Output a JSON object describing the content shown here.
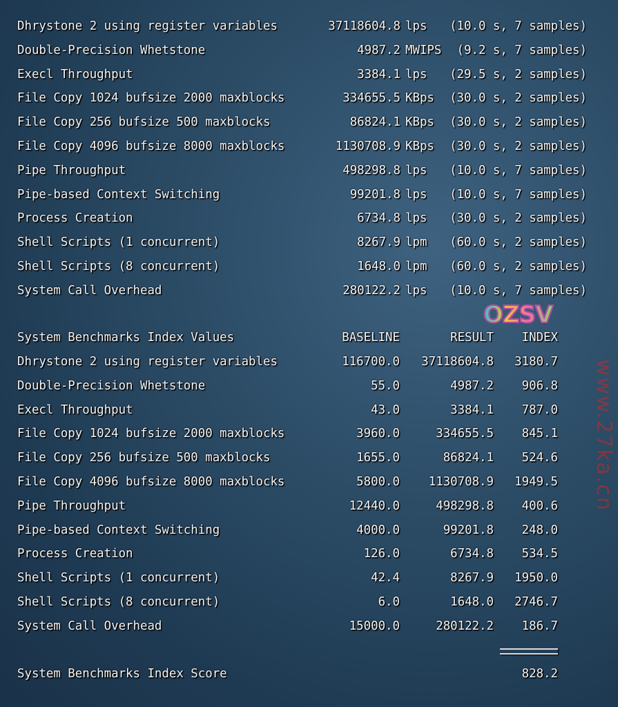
{
  "runs": [
    {
      "name": "Dhrystone 2 using register variables",
      "value": "37118604.8",
      "unit": "lps",
      "detail": "(10.0 s, 7 samples)"
    },
    {
      "name": "Double-Precision Whetstone",
      "value": "4987.2",
      "unit": "MWIPS",
      "detail": "(9.2 s, 7 samples)"
    },
    {
      "name": "Execl Throughput",
      "value": "3384.1",
      "unit": "lps",
      "detail": "(29.5 s, 2 samples)"
    },
    {
      "name": "File Copy 1024 bufsize 2000 maxblocks",
      "value": "334655.5",
      "unit": "KBps",
      "detail": "(30.0 s, 2 samples)"
    },
    {
      "name": "File Copy 256 bufsize 500 maxblocks",
      "value": "86824.1",
      "unit": "KBps",
      "detail": "(30.0 s, 2 samples)"
    },
    {
      "name": "File Copy 4096 bufsize 8000 maxblocks",
      "value": "1130708.9",
      "unit": "KBps",
      "detail": "(30.0 s, 2 samples)"
    },
    {
      "name": "Pipe Throughput",
      "value": "498298.8",
      "unit": "lps",
      "detail": "(10.0 s, 7 samples)"
    },
    {
      "name": "Pipe-based Context Switching",
      "value": "99201.8",
      "unit": "lps",
      "detail": "(10.0 s, 7 samples)"
    },
    {
      "name": "Process Creation",
      "value": "6734.8",
      "unit": "lps",
      "detail": "(30.0 s, 2 samples)"
    },
    {
      "name": "Shell Scripts (1 concurrent)",
      "value": "8267.9",
      "unit": "lpm",
      "detail": "(60.0 s, 2 samples)"
    },
    {
      "name": "Shell Scripts (8 concurrent)",
      "value": "1648.0",
      "unit": "lpm",
      "detail": "(60.0 s, 2 samples)"
    },
    {
      "name": "System Call Overhead",
      "value": "280122.2",
      "unit": "lps",
      "detail": "(10.0 s, 7 samples)"
    }
  ],
  "index": {
    "header": {
      "title": "System Benchmarks Index Values",
      "baseline": "BASELINE",
      "result": "RESULT",
      "index": "INDEX"
    },
    "rows": [
      {
        "name": "Dhrystone 2 using register variables",
        "baseline": "116700.0",
        "result": "37118604.8",
        "index": "3180.7"
      },
      {
        "name": "Double-Precision Whetstone",
        "baseline": "55.0",
        "result": "4987.2",
        "index": "906.8"
      },
      {
        "name": "Execl Throughput",
        "baseline": "43.0",
        "result": "3384.1",
        "index": "787.0"
      },
      {
        "name": "File Copy 1024 bufsize 2000 maxblocks",
        "baseline": "3960.0",
        "result": "334655.5",
        "index": "845.1"
      },
      {
        "name": "File Copy 256 bufsize 500 maxblocks",
        "baseline": "1655.0",
        "result": "86824.1",
        "index": "524.6"
      },
      {
        "name": "File Copy 4096 bufsize 8000 maxblocks",
        "baseline": "5800.0",
        "result": "1130708.9",
        "index": "1949.5"
      },
      {
        "name": "Pipe Throughput",
        "baseline": "12440.0",
        "result": "498298.8",
        "index": "400.6"
      },
      {
        "name": "Pipe-based Context Switching",
        "baseline": "4000.0",
        "result": "99201.8",
        "index": "248.0"
      },
      {
        "name": "Process Creation",
        "baseline": "126.0",
        "result": "6734.8",
        "index": "534.5"
      },
      {
        "name": "Shell Scripts (1 concurrent)",
        "baseline": "42.4",
        "result": "8267.9",
        "index": "1950.0"
      },
      {
        "name": "Shell Scripts (8 concurrent)",
        "baseline": "6.0",
        "result": "1648.0",
        "index": "2746.7"
      },
      {
        "name": "System Call Overhead",
        "baseline": "15000.0",
        "result": "280122.2",
        "index": "186.7"
      }
    ],
    "separator": "========",
    "score_label": "System Benchmarks Index Score",
    "score": "828.2"
  },
  "watermark": "www.27ka.cn",
  "sticker": "OZSV"
}
